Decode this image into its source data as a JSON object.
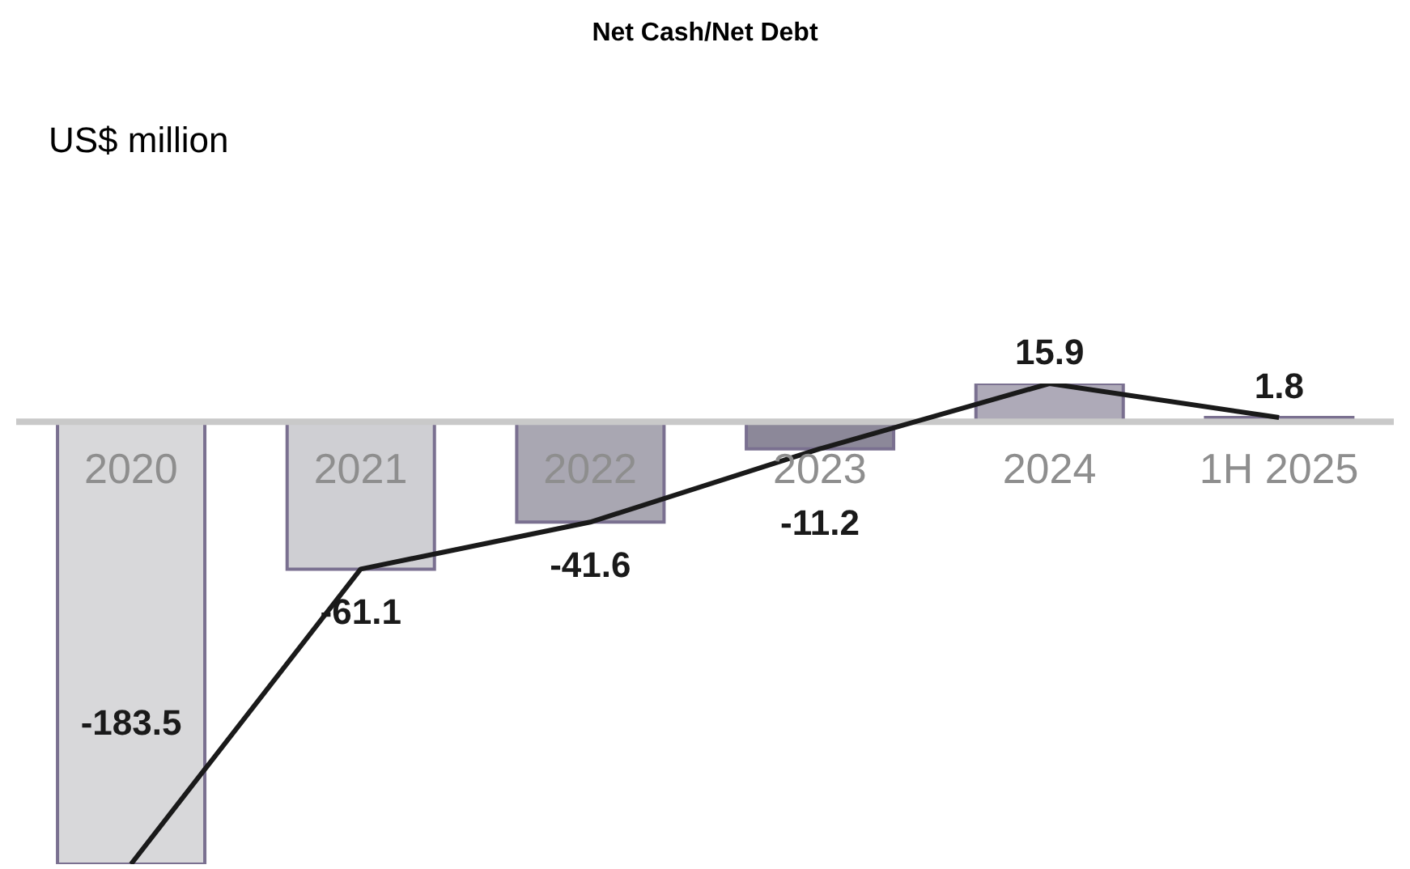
{
  "chart_data": {
    "type": "bar",
    "title": "Net Cash/Net Debt",
    "annotations": [
      "US$ million"
    ],
    "categories": [
      "2020",
      "2021",
      "2022",
      "2023",
      "2024",
      "1H 2025"
    ],
    "series": [
      {
        "colors": [
          "#d8d8da",
          "#cfcfd3",
          "#a9a7b2",
          "#8c8899",
          "#aeaab8",
          "#9a96a8"
        ],
        "values": [
          -183.5,
          -61.1,
          -41.6,
          -11.2,
          15.9,
          1.8
        ],
        "value_labels": [
          "-183.5",
          "-61.1",
          "-41.6",
          "-11.2",
          "15.9",
          "1.8"
        ]
      },
      {
        "type": "line",
        "color": "#1a1a1a",
        "values": [
          -183.5,
          -61.1,
          -41.6,
          -11.2,
          15.9,
          1.8
        ]
      }
    ],
    "marker": "none",
    "line_style": "solid",
    "legend": false,
    "grid": false
  }
}
